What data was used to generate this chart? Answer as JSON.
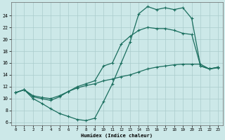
{
  "bg_color": "#cce8e8",
  "grid_color": "#aacccc",
  "line_color": "#1a6e5e",
  "xlabel": "Humidex (Indice chaleur)",
  "yticks": [
    6,
    8,
    10,
    12,
    14,
    16,
    18,
    20,
    22,
    24
  ],
  "xticks": [
    0,
    1,
    2,
    3,
    4,
    5,
    6,
    7,
    8,
    9,
    10,
    11,
    12,
    13,
    14,
    15,
    16,
    17,
    18,
    19,
    20,
    21,
    22,
    23
  ],
  "xlim": [
    -0.5,
    23.5
  ],
  "ylim": [
    5.5,
    26.2
  ],
  "line1_x": [
    0,
    1,
    2,
    3,
    4,
    5,
    6,
    7,
    8,
    9,
    10,
    11,
    12,
    13,
    14,
    15,
    16,
    17,
    18,
    19,
    20,
    21,
    22,
    23
  ],
  "line1_y": [
    11.0,
    11.5,
    10.0,
    9.2,
    8.3,
    7.5,
    7.0,
    6.5,
    6.3,
    6.7,
    9.5,
    12.5,
    16.0,
    19.5,
    24.3,
    25.5,
    25.0,
    25.3,
    25.0,
    25.3,
    23.5,
    15.5,
    15.0,
    15.3
  ],
  "line2_x": [
    0,
    1,
    2,
    3,
    4,
    5,
    6,
    7,
    8,
    9,
    10,
    11,
    12,
    13,
    14,
    15,
    16,
    17,
    18,
    19,
    20,
    21,
    22,
    23
  ],
  "line2_y": [
    11.0,
    11.5,
    10.3,
    10.0,
    9.7,
    10.3,
    11.2,
    12.0,
    12.5,
    13.0,
    15.5,
    16.0,
    19.2,
    20.5,
    21.5,
    22.0,
    21.8,
    21.8,
    21.5,
    21.0,
    20.8,
    15.5,
    15.0,
    15.3
  ],
  "line3_x": [
    0,
    1,
    2,
    3,
    4,
    5,
    6,
    7,
    8,
    9,
    10,
    11,
    12,
    13,
    14,
    15,
    16,
    17,
    18,
    19,
    20,
    21,
    22,
    23
  ],
  "line3_y": [
    11.0,
    11.5,
    10.5,
    10.2,
    10.0,
    10.5,
    11.2,
    11.8,
    12.2,
    12.5,
    13.0,
    13.3,
    13.7,
    14.0,
    14.5,
    15.0,
    15.3,
    15.5,
    15.7,
    15.8,
    15.8,
    15.8,
    15.0,
    15.2
  ]
}
